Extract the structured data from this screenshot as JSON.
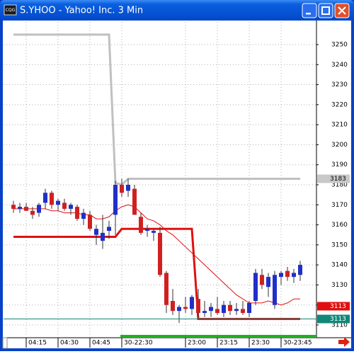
{
  "window": {
    "title": "S.YHOO - Yahoo! Inc. 3 Min"
  },
  "chart_data": {
    "type": "candlestick",
    "categories": [
      null,
      null,
      "04:15",
      null,
      null,
      null,
      null,
      "04:30",
      null,
      null,
      null,
      null,
      "04:45",
      null,
      null,
      null,
      null,
      "30-22:30",
      null,
      null,
      null,
      null,
      null,
      null,
      null,
      null,
      null,
      "23:00",
      null,
      null,
      null,
      null,
      "23:15",
      null,
      null,
      null,
      null,
      "23:30",
      null,
      null,
      null,
      null,
      "30-23:45",
      null,
      null,
      null
    ],
    "open": [
      3170,
      3168,
      3169,
      3167,
      3166,
      3171,
      3176,
      3170,
      3171,
      3168,
      3169,
      3163,
      3165,
      3155,
      3152,
      3157,
      3165,
      3180,
      3177,
      3178,
      3164,
      3157,
      3156,
      3156,
      3136,
      3122,
      3117,
      3119,
      3118,
      3123,
      3116,
      3117,
      3118,
      3116,
      3120,
      3117,
      3118,
      3116,
      3122,
      3135,
      3129,
      3120,
      3134,
      3137,
      3134,
      3135
    ],
    "high": [
      3172,
      3171,
      3171,
      3169,
      3171,
      3178,
      3177,
      3173,
      3173,
      3171,
      3170,
      3168,
      3167,
      3160,
      3165,
      3162,
      3182,
      3183,
      3183,
      3180,
      3166,
      3160,
      3158,
      3159,
      3137,
      3128,
      3120,
      3124,
      3125,
      3128,
      3122,
      3121,
      3124,
      3122,
      3122,
      3121,
      3122,
      3122,
      3138,
      3138,
      3136,
      3137,
      3137,
      3139,
      3138,
      3142
    ],
    "low": [
      3166,
      3166,
      3167,
      3163,
      3164,
      3168,
      3168,
      3167,
      3167,
      3165,
      3162,
      3160,
      3157,
      3150,
      3148,
      3153,
      3155,
      3174,
      3174,
      3165,
      3155,
      3154,
      3152,
      3134,
      3116,
      3115,
      3111,
      3116,
      3115,
      3114,
      3114,
      3114,
      3115,
      3114,
      3115,
      3115,
      3115,
      3114,
      3120,
      3128,
      3124,
      3118,
      3130,
      3132,
      3131,
      3132
    ],
    "close": [
      3168,
      3169,
      3167,
      3165,
      3170,
      3176,
      3170,
      3172,
      3168,
      3170,
      3163,
      3166,
      3158,
      3158,
      3156,
      3159,
      3180,
      3176,
      3180,
      3165,
      3156,
      3158,
      3157,
      3135,
      3120,
      3117,
      3119,
      3118,
      3124,
      3116,
      3117,
      3119,
      3116,
      3120,
      3117,
      3118,
      3116,
      3121,
      3136,
      3130,
      3134,
      3135,
      3136,
      3134,
      3136,
      3140
    ],
    "up_color": "#2030c8",
    "down_color": "#d02020",
    "lines": [
      {
        "color": "#c0c0c0",
        "width": 3,
        "values": [
          3255,
          3255,
          3255,
          3255,
          3255,
          3255,
          3255,
          3255,
          3255,
          3255,
          3255,
          3255,
          3255,
          3255,
          3255,
          3255,
          3181,
          3180,
          3183,
          3183,
          3183,
          3183,
          3183,
          3183,
          3183,
          3183,
          3183,
          3183,
          3183,
          3183,
          3183,
          3183,
          3183,
          3183,
          3183,
          3183,
          3183,
          3183,
          3183,
          3183,
          3183,
          3183,
          3183,
          3183,
          3183,
          3183
        ]
      },
      {
        "color": "#e01010",
        "width": 3,
        "values": [
          3154,
          3154,
          3154,
          3154,
          3154,
          3154,
          3154,
          3154,
          3154,
          3154,
          3154,
          3154,
          3154,
          3154,
          3154,
          3154,
          3154,
          3158,
          3158,
          3158,
          3158,
          3158,
          3158,
          3158,
          3158,
          3158,
          3158,
          3158,
          3158,
          3113,
          3113,
          3113,
          3113,
          3113,
          3113,
          3113,
          3113,
          3113,
          3113,
          3113,
          3113,
          3113,
          3113,
          3113,
          3113,
          3113
        ]
      },
      {
        "color": "#e01010",
        "width": 1,
        "values": [
          3168,
          3168,
          3168,
          3168,
          3168,
          3168,
          3167,
          3167,
          3166,
          3166,
          3166,
          3165,
          3165,
          3163,
          3163,
          3164,
          3167,
          3169,
          3170,
          3169,
          3166,
          3163,
          3162,
          3160,
          3157,
          3155,
          3152,
          3149,
          3146,
          3143,
          3140,
          3137,
          3134,
          3131,
          3128,
          3125,
          3123,
          3121,
          3121,
          3121,
          3122,
          3121,
          3120,
          3121,
          3123,
          3123
        ]
      }
    ],
    "price_markers": [
      {
        "value": 3183,
        "color": "#c8c8c8"
      },
      {
        "value": 3113,
        "color": "#108878"
      },
      {
        "value": 3113,
        "color": "#e01010"
      }
    ],
    "ylim": [
      3104.7,
      3261.3
    ],
    "yticks": [
      3110,
      3120,
      3130,
      3140,
      3150,
      3160,
      3170,
      3180,
      3190,
      3200,
      3210,
      3220,
      3230,
      3240,
      3250
    ],
    "grid": true
  }
}
